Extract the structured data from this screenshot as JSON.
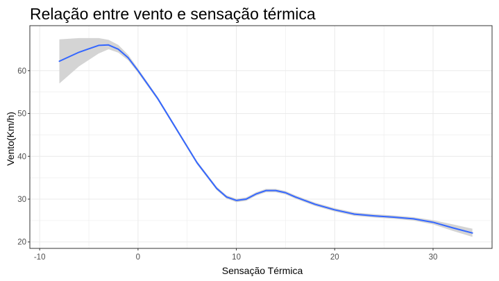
{
  "chart_data": {
    "type": "line",
    "title": "Relação entre vento e sensação térmica",
    "xlabel": "Sensação Térmica",
    "ylabel": "Vento(Km/h)",
    "xlim": [
      -11,
      36
    ],
    "ylim": [
      18.5,
      70.5
    ],
    "x_ticks": [
      -10,
      0,
      10,
      20,
      30
    ],
    "x_tick_labels": [
      "-10",
      "0",
      "10",
      "20",
      "30"
    ],
    "y_ticks": [
      20,
      30,
      40,
      50,
      60
    ],
    "y_tick_labels": [
      "20",
      "30",
      "40",
      "50",
      "60"
    ],
    "grid": true,
    "legend": "none",
    "colors": {
      "line": "#3366ff",
      "ribbon": "#d4d4d4",
      "grid": "#ebebeb",
      "border": "#333333"
    },
    "series": [
      {
        "x": [
          -8,
          -6,
          -4,
          -3,
          -2,
          -1,
          0,
          2,
          4,
          6,
          8,
          9,
          10,
          11,
          12,
          13,
          14,
          15,
          16,
          18,
          20,
          22,
          24,
          26,
          28,
          30,
          32,
          34
        ],
        "y": [
          62.2,
          64.3,
          65.9,
          66.0,
          65.0,
          63.0,
          60.0,
          53.5,
          46.0,
          38.5,
          32.5,
          30.5,
          29.7,
          30.0,
          31.2,
          32.0,
          32.0,
          31.5,
          30.5,
          28.8,
          27.5,
          26.5,
          26.1,
          25.8,
          25.4,
          24.6,
          23.3,
          22.1
        ],
        "lower": [
          57.0,
          61.0,
          64.0,
          65.0,
          64.2,
          62.4,
          59.5,
          53.1,
          45.6,
          38.1,
          32.1,
          30.1,
          29.3,
          29.6,
          30.8,
          31.6,
          31.6,
          31.1,
          30.1,
          28.4,
          27.1,
          26.1,
          25.7,
          25.4,
          25.0,
          24.1,
          22.6,
          21.2
        ],
        "upper": [
          67.3,
          67.6,
          67.6,
          67.2,
          66.0,
          63.7,
          60.5,
          53.9,
          46.4,
          38.9,
          32.9,
          30.9,
          30.1,
          30.4,
          31.6,
          32.4,
          32.4,
          31.9,
          30.9,
          29.2,
          27.9,
          26.9,
          26.5,
          26.2,
          25.8,
          25.1,
          24.1,
          23.1
        ]
      }
    ]
  }
}
